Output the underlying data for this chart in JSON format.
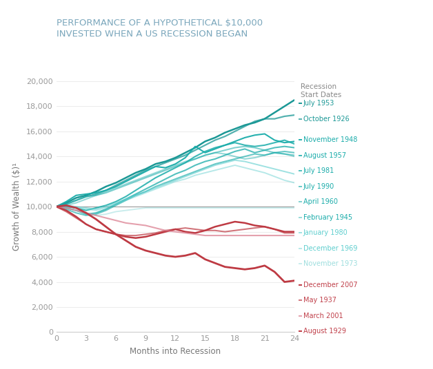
{
  "title_line1": "PERFORMANCE OF A HYPOTHETICAL $10,000",
  "title_line2": "INVESTED WHEN A US RECESSION BEGAN",
  "xlabel": "Months into Recession",
  "ylabel": "Growth of Wealth ($)¹",
  "legend_title": "Recession\nStart Dates",
  "background_color": "#ffffff",
  "title_color": "#7ba7bc",
  "x": [
    0,
    1,
    2,
    3,
    4,
    5,
    6,
    7,
    8,
    9,
    10,
    11,
    12,
    13,
    14,
    15,
    16,
    17,
    18,
    19,
    20,
    21,
    22,
    23,
    24
  ],
  "series": [
    {
      "label": "July 1953",
      "color": "#1b9896",
      "alpha": 1.0,
      "lw": 1.8,
      "group": "teal_dark",
      "values": [
        10000,
        10300,
        10700,
        10900,
        11200,
        11600,
        11900,
        12300,
        12700,
        13000,
        13400,
        13600,
        13900,
        14300,
        14700,
        15200,
        15500,
        15900,
        16200,
        16500,
        16700,
        17000,
        17500,
        18000,
        18500
      ]
    },
    {
      "label": "October 1926",
      "color": "#1b9896",
      "alpha": 0.75,
      "lw": 1.6,
      "group": "teal_dark",
      "values": [
        10000,
        10200,
        10500,
        10800,
        11000,
        11300,
        11700,
        12100,
        12500,
        12900,
        13200,
        13500,
        13800,
        14100,
        14500,
        14900,
        15300,
        15600,
        16000,
        16400,
        16800,
        17000,
        17000,
        17200,
        17300
      ]
    },
    {
      "label": "November 1948",
      "color": "#1aacaa",
      "alpha": 0.95,
      "lw": 1.5,
      "group": "teal_mid",
      "values": [
        10000,
        10400,
        10900,
        11000,
        11100,
        11300,
        11600,
        12000,
        12400,
        12800,
        13200,
        13100,
        13400,
        13900,
        14800,
        14300,
        14600,
        14900,
        15200,
        15500,
        15700,
        15800,
        15300,
        15100,
        15200
      ]
    },
    {
      "label": "August 1957",
      "color": "#1aacaa",
      "alpha": 0.85,
      "lw": 1.5,
      "group": "teal_mid",
      "values": [
        10000,
        10000,
        9900,
        9700,
        9900,
        10100,
        10400,
        10800,
        11300,
        11800,
        12300,
        12700,
        13100,
        13500,
        14000,
        14400,
        14700,
        14900,
        15100,
        14900,
        14800,
        14900,
        15100,
        15300,
        15000
      ]
    },
    {
      "label": "July 1981",
      "color": "#1aacaa",
      "alpha": 0.75,
      "lw": 1.5,
      "group": "teal_mid",
      "values": [
        10000,
        9900,
        9700,
        9400,
        9500,
        9800,
        10200,
        10600,
        11000,
        11400,
        11800,
        12200,
        12600,
        12900,
        13300,
        13600,
        13800,
        14100,
        14400,
        14600,
        14300,
        14500,
        14700,
        14800,
        14700
      ]
    },
    {
      "label": "July 1990",
      "color": "#1aacaa",
      "alpha": 0.65,
      "lw": 1.5,
      "group": "teal_mid",
      "values": [
        10000,
        9800,
        9500,
        9300,
        9400,
        9700,
        10100,
        10500,
        10900,
        11200,
        11600,
        11900,
        12200,
        12500,
        12800,
        13100,
        13400,
        13600,
        13800,
        14000,
        14200,
        14100,
        14300,
        14400,
        14300
      ]
    },
    {
      "label": "April 1960",
      "color": "#1aacaa",
      "alpha": 0.55,
      "lw": 1.5,
      "group": "teal_mid",
      "values": [
        10000,
        10200,
        10500,
        10800,
        10900,
        11100,
        11400,
        11700,
        12000,
        12300,
        12600,
        12900,
        13200,
        13500,
        13800,
        14100,
        14300,
        14500,
        14700,
        14800,
        14700,
        14500,
        14300,
        14200,
        14100
      ]
    },
    {
      "label": "February 1945",
      "color": "#1aacaa",
      "alpha": 0.45,
      "lw": 1.5,
      "group": "teal_mid",
      "values": [
        10000,
        10100,
        10300,
        10600,
        10900,
        11200,
        11500,
        11800,
        12100,
        12400,
        12700,
        13000,
        13300,
        13600,
        13800,
        14100,
        14300,
        14200,
        14000,
        13800,
        13900,
        14100,
        14300,
        14200,
        14000
      ]
    },
    {
      "label": "January 1980",
      "color": "#5ecece",
      "alpha": 0.6,
      "lw": 1.4,
      "group": "teal_light",
      "values": [
        10000,
        10100,
        10000,
        9900,
        9800,
        10000,
        10300,
        10600,
        10900,
        11200,
        11500,
        11800,
        12100,
        12400,
        12700,
        13000,
        13300,
        13500,
        13700,
        13600,
        13400,
        13200,
        13000,
        12800,
        12600
      ]
    },
    {
      "label": "December 1969",
      "color": "#5ecece",
      "alpha": 0.45,
      "lw": 1.4,
      "group": "teal_light",
      "values": [
        10000,
        10000,
        9900,
        9800,
        9700,
        9900,
        10200,
        10500,
        10800,
        11100,
        11400,
        11700,
        12000,
        12200,
        12500,
        12700,
        12900,
        13100,
        13300,
        13100,
        12900,
        12700,
        12400,
        12100,
        11900
      ]
    },
    {
      "label": "November 1973",
      "color": "#9edede",
      "alpha": 0.55,
      "lw": 1.4,
      "group": "teal_pale",
      "values": [
        10000,
        9900,
        9700,
        9500,
        9300,
        9400,
        9600,
        9700,
        9800,
        9900,
        9900,
        9900,
        9900,
        9900,
        9900,
        9900,
        9900,
        9900,
        9900,
        9900,
        9900,
        9900,
        9900,
        9900,
        9900
      ]
    },
    {
      "label": "December 2007",
      "color": "#be3a43",
      "alpha": 1.0,
      "lw": 1.8,
      "group": "red_dark",
      "values": [
        10000,
        9700,
        9200,
        8600,
        8200,
        8000,
        7800,
        7600,
        7500,
        7600,
        7800,
        8000,
        8200,
        8000,
        7900,
        8100,
        8400,
        8600,
        8800,
        8700,
        8500,
        8400,
        8200,
        8000,
        8000
      ]
    },
    {
      "label": "May 1937",
      "color": "#be3a43",
      "alpha": 0.7,
      "lw": 1.5,
      "group": "red_dark",
      "values": [
        10000,
        9600,
        9100,
        8600,
        8200,
        8000,
        7800,
        7700,
        7700,
        7800,
        7900,
        8100,
        8200,
        8300,
        8200,
        8100,
        8100,
        8000,
        8100,
        8200,
        8300,
        8400,
        8200,
        7900,
        7900
      ]
    },
    {
      "label": "March 2001",
      "color": "#d9788a",
      "alpha": 0.7,
      "lw": 1.5,
      "group": "red_light",
      "values": [
        10000,
        9900,
        9700,
        9500,
        9300,
        9100,
        8900,
        8700,
        8600,
        8500,
        8300,
        8100,
        8000,
        7900,
        7800,
        7700,
        7700,
        7700,
        7700,
        7700,
        7700,
        7700,
        7700,
        7700,
        7700
      ]
    },
    {
      "label": "August 1929",
      "color": "#be3a43",
      "alpha": 1.0,
      "lw": 2.0,
      "group": "red_dark",
      "values": [
        10000,
        10100,
        9900,
        9500,
        9000,
        8400,
        7800,
        7300,
        6800,
        6500,
        6300,
        6100,
        6000,
        6100,
        6300,
        5800,
        5500,
        5200,
        5100,
        5000,
        5100,
        5300,
        4800,
        4000,
        4100
      ]
    }
  ],
  "hline_y": 10000,
  "hline_color": "#999999",
  "ylim": [
    0,
    20000
  ],
  "xlim": [
    0,
    24
  ],
  "yticks": [
    0,
    2000,
    4000,
    6000,
    8000,
    10000,
    12000,
    14000,
    16000,
    18000,
    20000
  ],
  "xticks": [
    0,
    3,
    6,
    9,
    12,
    15,
    18,
    21,
    24
  ],
  "legend_entries": [
    {
      "label": "July 1953",
      "color": "#1b9896",
      "alpha": 1.0,
      "text_color": "#1b9896"
    },
    {
      "label": "October 1926",
      "color": "#1b9896",
      "alpha": 0.75,
      "text_color": "#1b9896"
    },
    {
      "label": "November 1948",
      "color": "#1aacaa",
      "alpha": 0.95,
      "text_color": "#1aacaa"
    },
    {
      "label": "August 1957",
      "color": "#1aacaa",
      "alpha": 0.85,
      "text_color": "#1aacaa"
    },
    {
      "label": "July 1981",
      "color": "#1aacaa",
      "alpha": 0.75,
      "text_color": "#1aacaa"
    },
    {
      "label": "July 1990",
      "color": "#1aacaa",
      "alpha": 0.65,
      "text_color": "#1aacaa"
    },
    {
      "label": "April 1960",
      "color": "#1aacaa",
      "alpha": 0.55,
      "text_color": "#1aacaa"
    },
    {
      "label": "February 1945",
      "color": "#1aacaa",
      "alpha": 0.45,
      "text_color": "#1aacaa"
    },
    {
      "label": "January 1980",
      "color": "#5ecece",
      "alpha": 0.6,
      "text_color": "#5ecece"
    },
    {
      "label": "December 1969",
      "color": "#5ecece",
      "alpha": 0.45,
      "text_color": "#5ecece"
    },
    {
      "label": "November 1973",
      "color": "#9edede",
      "alpha": 0.55,
      "text_color": "#9edede"
    },
    {
      "label": "December 2007",
      "color": "#be3a43",
      "alpha": 1.0,
      "text_color": "#c0404a"
    },
    {
      "label": "May 1937",
      "color": "#be3a43",
      "alpha": 0.7,
      "text_color": "#c0404a"
    },
    {
      "label": "March 2001",
      "color": "#d9788a",
      "alpha": 0.7,
      "text_color": "#c0404a"
    },
    {
      "label": "August 1929",
      "color": "#be3a43",
      "alpha": 1.0,
      "text_color": "#c0404a"
    }
  ]
}
